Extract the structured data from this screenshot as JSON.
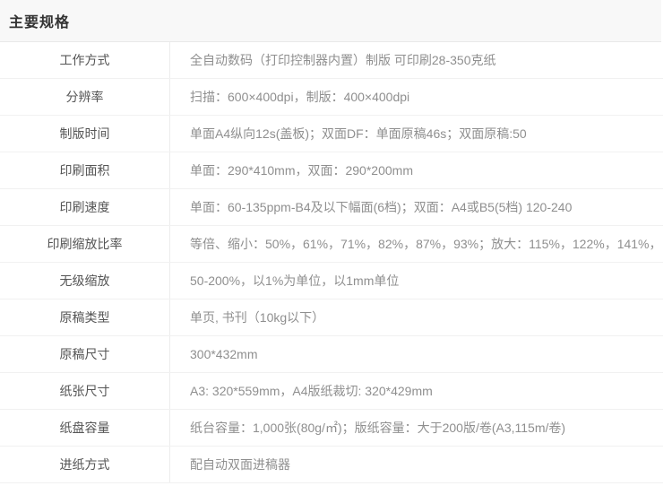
{
  "page": {
    "title": "主要规格"
  },
  "colors": {
    "title_bg": "#f8f8f8",
    "title_text": "#333333",
    "label_text": "#555555",
    "value_text": "#8f8f8f",
    "row_divider": "#f1f1f1",
    "column_divider": "#ececec"
  },
  "table": {
    "rows": [
      {
        "label": "工作方式",
        "value": "全自动数码（打印控制器内置）制版 可印刷28-350克纸"
      },
      {
        "label": "分辨率",
        "value": "扫描：600×400dpi，制版：400×400dpi"
      },
      {
        "label": "制版时间",
        "value": "单面A4纵向12s(盖板)；双面DF：单面原稿46s；双面原稿:50"
      },
      {
        "label": "印刷面积",
        "value": "单面：290*410mm，双面：290*200mm"
      },
      {
        "label": "印刷速度",
        "value": "单面：60-135ppm-B4及以下幅面(6档)；双面：A4或B5(5档) 120-240"
      },
      {
        "label": "印刷缩放比率",
        "value": "等倍、缩小：50%，61%，71%，82%，87%，93%；放大：115%，122%，141%，"
      },
      {
        "label": "无级缩放",
        "value": "50-200%，以1%为单位，以1mm单位"
      },
      {
        "label": "原稿类型",
        "value": "单页, 书刊（10kg以下）"
      },
      {
        "label": "原稿尺寸",
        "value": "300*432mm"
      },
      {
        "label": "纸张尺寸",
        "value": "A3: 320*559mm，A4版纸裁切: 320*429mm"
      },
      {
        "label": "纸盘容量",
        "value": "纸台容量：1,000张(80g/㎡)；版纸容量：大于200版/卷(A3,115m/卷)"
      },
      {
        "label": "进纸方式",
        "value": "配自动双面进稿器"
      }
    ]
  }
}
